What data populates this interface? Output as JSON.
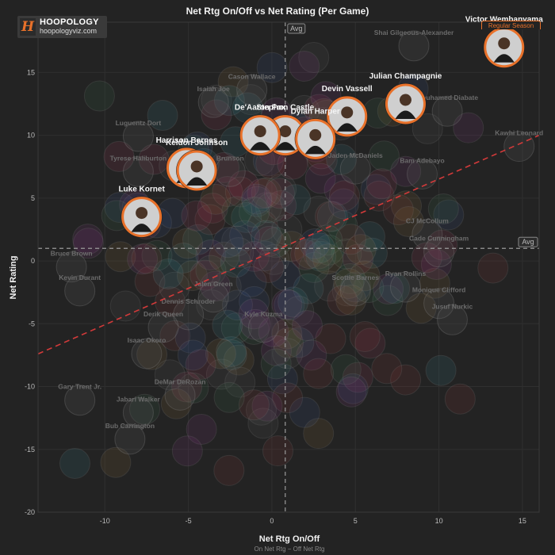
{
  "chart_data": {
    "type": "scatter",
    "title": "Net Rtg On/Off vs Net Rating (Per Game)",
    "xlabel": "Net Rtg On/Off",
    "xlabel_sub": "On Net Rtg − Off Net Rtg",
    "ylabel": "Net Rating",
    "xlim": [
      -14,
      16
    ],
    "ylim": [
      -20,
      19
    ],
    "xticks": [
      -10,
      -5,
      0,
      5,
      10,
      15
    ],
    "yticks": [
      -20,
      -15,
      -10,
      -5,
      0,
      5,
      10,
      15
    ],
    "grid": true,
    "avg_x": 0.8,
    "avg_y": 1.0,
    "avg_label": "Avg",
    "trendline": {
      "style": "dashed",
      "color": "#d33a3a",
      "points": [
        [
          -14,
          -7.4
        ],
        [
          16,
          10.0
        ]
      ]
    },
    "highlighted": [
      {
        "name": "Victor Wembanyama",
        "x": 13.9,
        "y": 17.0
      },
      {
        "name": "Julian Champagnie",
        "x": 8.0,
        "y": 12.5
      },
      {
        "name": "Devin Vassell",
        "x": 4.5,
        "y": 11.5
      },
      {
        "name": "Stephon Castle",
        "x": 0.8,
        "y": 10.0
      },
      {
        "name": "De'Aaron Fox",
        "x": -0.7,
        "y": 10.0
      },
      {
        "name": "Dylan Harper",
        "x": 2.6,
        "y": 9.7
      },
      {
        "name": "Harrison Barnes",
        "x": -5.1,
        "y": 7.4
      },
      {
        "name": "Keldon Johnson",
        "x": -4.5,
        "y": 7.2
      },
      {
        "name": "Luke Kornet",
        "x": -7.8,
        "y": 3.5
      }
    ],
    "background_labels": [
      {
        "name": "Shai Gilgeous-Alexander",
        "x": 8.5,
        "y": 18.0
      },
      {
        "name": "Cason Wallace",
        "x": -1.2,
        "y": 14.5
      },
      {
        "name": "Isaiah Joe",
        "x": -3.5,
        "y": 13.5
      },
      {
        "name": "Mouhamed Diabate",
        "x": 10.5,
        "y": 12.8
      },
      {
        "name": "Luguentz Dort",
        "x": -8.0,
        "y": 10.8
      },
      {
        "name": "Kawhi Leonard",
        "x": 14.8,
        "y": 10.0
      },
      {
        "name": "Jaden McDaniels",
        "x": 5.0,
        "y": 8.2
      },
      {
        "name": "Bam Adebayo",
        "x": 9.0,
        "y": 7.8
      },
      {
        "name": "Brunson",
        "x": -2.5,
        "y": 8.0
      },
      {
        "name": "Tyrese Haliburton",
        "x": -8.0,
        "y": 8.0
      },
      {
        "name": "CJ McCollum",
        "x": 9.3,
        "y": 3.0
      },
      {
        "name": "Cade Cunningham",
        "x": 10.0,
        "y": 1.6
      },
      {
        "name": "Bruce Brown",
        "x": -12.0,
        "y": 0.4
      },
      {
        "name": "Kevin Durant",
        "x": -11.5,
        "y": -1.5
      },
      {
        "name": "Ryan Rollins",
        "x": 8.0,
        "y": -1.2
      },
      {
        "name": "Scottie Barnes",
        "x": 5.0,
        "y": -1.5
      },
      {
        "name": "Monique Clifford",
        "x": 10.0,
        "y": -2.5
      },
      {
        "name": "Jalen Green",
        "x": -3.5,
        "y": -2.0
      },
      {
        "name": "Dennis Schroder",
        "x": -5.0,
        "y": -3.4
      },
      {
        "name": "Derik Queen",
        "x": -6.5,
        "y": -4.4
      },
      {
        "name": "Kyle Kuzma",
        "x": -0.5,
        "y": -4.4
      },
      {
        "name": "Jusuf Nurkic",
        "x": 10.8,
        "y": -3.8
      },
      {
        "name": "Isaac Okoro",
        "x": -7.5,
        "y": -6.5
      },
      {
        "name": "DeMar DeRozan",
        "x": -5.5,
        "y": -9.8
      },
      {
        "name": "Gary Trent Jr.",
        "x": -11.5,
        "y": -10.2
      },
      {
        "name": "Jabari Walker",
        "x": -8.0,
        "y": -11.2
      },
      {
        "name": "Bub Carrington",
        "x": -8.5,
        "y": -13.3
      }
    ]
  },
  "logo": {
    "name": "HOOPOLOGY",
    "url": "hoopologyviz.com",
    "mark": "H"
  },
  "season_button": "Regular Season",
  "colors": {
    "background": "#232323",
    "accent_orange": "#e8712a",
    "trend_red": "#d33a3a",
    "grid": "#2f2f2f"
  }
}
